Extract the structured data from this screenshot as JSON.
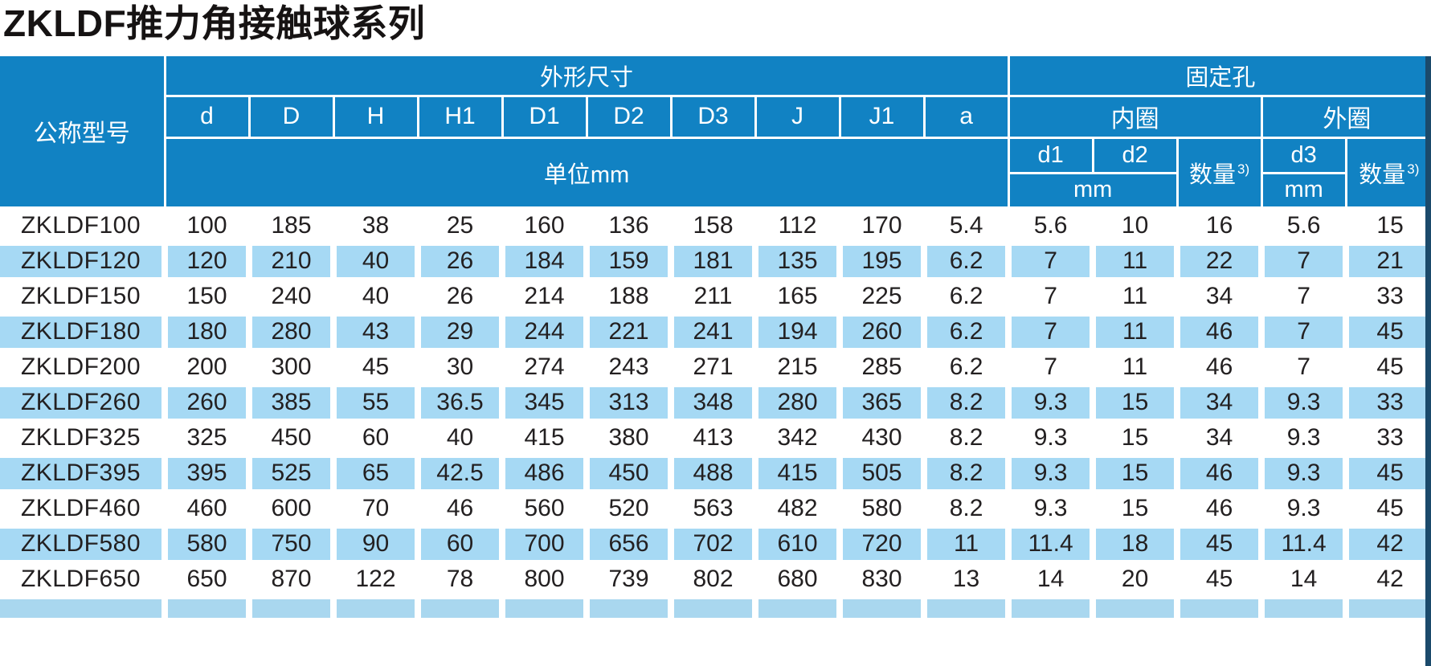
{
  "title": "ZKLDF推力角接触球系列",
  "table": {
    "header": {
      "model": "公称型号",
      "dims_group": "外形尺寸",
      "holes_group": "固定孔",
      "dim_cols": [
        "d",
        "D",
        "H",
        "H1",
        "D1",
        "D2",
        "D3",
        "J",
        "J1",
        "a"
      ],
      "dims_unit": "单位mm",
      "inner_ring": "内圈",
      "outer_ring": "外圈",
      "d1": "d1",
      "d2": "d2",
      "d3": "d3",
      "qty": "数量",
      "qty_sup": "3)",
      "mm": "mm"
    },
    "rows": [
      {
        "model": "ZKLDF100",
        "values": [
          "100",
          "185",
          "38",
          "25",
          "160",
          "136",
          "158",
          "112",
          "170",
          "5.4",
          "5.6",
          "10",
          "16",
          "5.6",
          "15"
        ]
      },
      {
        "model": "ZKLDF120",
        "values": [
          "120",
          "210",
          "40",
          "26",
          "184",
          "159",
          "181",
          "135",
          "195",
          "6.2",
          "7",
          "11",
          "22",
          "7",
          "21"
        ]
      },
      {
        "model": "ZKLDF150",
        "values": [
          "150",
          "240",
          "40",
          "26",
          "214",
          "188",
          "211",
          "165",
          "225",
          "6.2",
          "7",
          "11",
          "34",
          "7",
          "33"
        ]
      },
      {
        "model": "ZKLDF180",
        "values": [
          "180",
          "280",
          "43",
          "29",
          "244",
          "221",
          "241",
          "194",
          "260",
          "6.2",
          "7",
          "11",
          "46",
          "7",
          "45"
        ]
      },
      {
        "model": "ZKLDF200",
        "values": [
          "200",
          "300",
          "45",
          "30",
          "274",
          "243",
          "271",
          "215",
          "285",
          "6.2",
          "7",
          "11",
          "46",
          "7",
          "45"
        ]
      },
      {
        "model": "ZKLDF260",
        "values": [
          "260",
          "385",
          "55",
          "36.5",
          "345",
          "313",
          "348",
          "280",
          "365",
          "8.2",
          "9.3",
          "15",
          "34",
          "9.3",
          "33"
        ]
      },
      {
        "model": "ZKLDF325",
        "values": [
          "325",
          "450",
          "60",
          "40",
          "415",
          "380",
          "413",
          "342",
          "430",
          "8.2",
          "9.3",
          "15",
          "34",
          "9.3",
          "33"
        ]
      },
      {
        "model": "ZKLDF395",
        "values": [
          "395",
          "525",
          "65",
          "42.5",
          "486",
          "450",
          "488",
          "415",
          "505",
          "8.2",
          "9.3",
          "15",
          "46",
          "9.3",
          "45"
        ]
      },
      {
        "model": "ZKLDF460",
        "values": [
          "460",
          "600",
          "70",
          "46",
          "560",
          "520",
          "563",
          "482",
          "580",
          "8.2",
          "9.3",
          "15",
          "46",
          "9.3",
          "45"
        ]
      },
      {
        "model": "ZKLDF580",
        "values": [
          "580",
          "750",
          "90",
          "60",
          "700",
          "656",
          "702",
          "610",
          "720",
          "11",
          "11.4",
          "18",
          "45",
          "11.4",
          "42"
        ]
      },
      {
        "model": "ZKLDF650",
        "values": [
          "650",
          "870",
          "122",
          "78",
          "800",
          "739",
          "802",
          "680",
          "830",
          "13",
          "14",
          "20",
          "45",
          "14",
          "42"
        ]
      }
    ],
    "colors": {
      "header_blue": "#1182c3",
      "stripe_blue": "#a6d9f4",
      "right_edge": "#1b4a6b"
    }
  }
}
